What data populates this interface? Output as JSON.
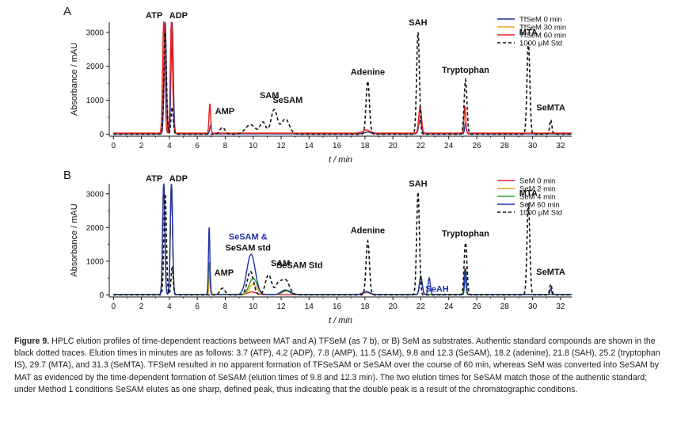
{
  "caption": {
    "label": "Figure 9.",
    "text": "HPLC elution profiles of time-dependent reactions between MAT and A) TFSeM (as 7 b), or B) SeM as substrates. Authentic standard compounds are shown in the black dotted traces. Elution times in minutes are as follows: 3.7 (ATP), 4.2 (ADP), 7.8 (AMP), 11.5 (SAM), 9.8 and 12.3 (SeSAM), 18.2 (adenine), 21.8 (SAH), 25.2 (tryptophan IS), 29.7 (MTA), and 31.3 (SeMTA). TFSeM resulted in no apparent formation of TFSeSAM or SeSAM over the course of 60 min, whereas SeM was converted into SeSAM by MAT as evidenced by the time-dependent formation of SeSAM (elution times of 9.8 and 12.3 min). The two elution times for SeSAM match those of the authentic standard; under Method 1 conditions SeSAM elutes as one sharp, defined peak, thus indicating that the double peak is a result of the chromatographic conditions."
  },
  "chart_data": [
    {
      "panel": "A",
      "type": "line",
      "xlabel": "t / min",
      "ylabel": "Absorbance / mAU",
      "xlim": [
        -0.3,
        32.8
      ],
      "ylim": [
        -60,
        3300
      ],
      "xticks": [
        0,
        2,
        4,
        6,
        8,
        10,
        12,
        14,
        16,
        18,
        20,
        22,
        24,
        26,
        28,
        30,
        32
      ],
      "yticks": [
        0,
        1000,
        2000,
        3000
      ],
      "legend_position": "top-right",
      "series": [
        {
          "name": "TfSeM    0 min",
          "color": "#1f2fa8",
          "dash": "",
          "baseline": 10,
          "peaks": [
            [
              3.7,
              3290,
              0.08
            ],
            [
              4.2,
              3290,
              0.08
            ],
            [
              6.95,
              250,
              0.06
            ],
            [
              18.2,
              50,
              0.25
            ],
            [
              21.95,
              420,
              0.1
            ],
            [
              25.2,
              320,
              0.06
            ]
          ]
        },
        {
          "name": "TfSeM  30 min",
          "color": "#f5a623",
          "dash": "",
          "baseline": 35,
          "peaks": [
            [
              3.6,
              3290,
              0.08
            ],
            [
              4.15,
              3290,
              0.08
            ],
            [
              6.9,
              750,
              0.06
            ],
            [
              18.1,
              80,
              0.25
            ],
            [
              21.95,
              650,
              0.1
            ],
            [
              25.15,
              700,
              0.06
            ]
          ]
        },
        {
          "name": "TfSeM  60 min",
          "color": "#e8202a",
          "dash": "",
          "baseline": 28,
          "peaks": [
            [
              3.6,
              3290,
              0.08
            ],
            [
              4.15,
              3290,
              0.08
            ],
            [
              6.9,
              870,
              0.06
            ],
            [
              18.1,
              100,
              0.25
            ],
            [
              21.95,
              790,
              0.1
            ],
            [
              25.15,
              800,
              0.06
            ]
          ]
        },
        {
          "name": "1000 µM Std",
          "color": "#111111",
          "dash": "4,3",
          "baseline": 0,
          "peaks": [
            [
              3.7,
              3000,
              0.09
            ],
            [
              4.2,
              800,
              0.08
            ],
            [
              7.8,
              200,
              0.18
            ],
            [
              9.8,
              280,
              0.35
            ],
            [
              10.7,
              350,
              0.2
            ],
            [
              11.5,
              720,
              0.22
            ],
            [
              12.3,
              450,
              0.28
            ],
            [
              18.2,
              1560,
              0.12
            ],
            [
              21.8,
              3000,
              0.1
            ],
            [
              25.2,
              1600,
              0.1
            ],
            [
              29.7,
              2700,
              0.1
            ],
            [
              31.3,
              420,
              0.08
            ]
          ]
        }
      ],
      "peak_labels": [
        {
          "text": "ATP",
          "x": 3.7
        },
        {
          "text": "ADP",
          "x": 4.2
        },
        {
          "text": "AMP",
          "x": 7.8
        },
        {
          "text": "SAM",
          "x": 11.5
        },
        {
          "text": "SeSAM",
          "x": 12.3
        },
        {
          "text": "Adenine",
          "x": 18.2
        },
        {
          "text": "SAH",
          "x": 21.8
        },
        {
          "text": "Tryptophan",
          "x": 25.2
        },
        {
          "text": "MTA",
          "x": 29.7
        },
        {
          "text": "SeMTA",
          "x": 31.3
        }
      ]
    },
    {
      "panel": "B",
      "type": "line",
      "xlabel": "t / min",
      "ylabel": "Absorbance / mAU",
      "xlim": [
        -0.3,
        32.8
      ],
      "ylim": [
        -60,
        3300
      ],
      "xticks": [
        0,
        2,
        4,
        6,
        8,
        10,
        12,
        14,
        16,
        18,
        20,
        22,
        24,
        26,
        28,
        30,
        32
      ],
      "yticks": [
        0,
        1000,
        2000,
        3000
      ],
      "legend_position": "top-right",
      "series": [
        {
          "name": "SeM    0 min",
          "color": "#e8202a",
          "dash": "",
          "baseline": 8,
          "peaks": [
            [
              3.6,
              3290,
              0.08
            ],
            [
              4.15,
              3290,
              0.08
            ],
            [
              6.9,
              600,
              0.06
            ],
            [
              9.9,
              80,
              0.3
            ],
            [
              18.1,
              60,
              0.25
            ],
            [
              22.0,
              500,
              0.1
            ],
            [
              25.15,
              760,
              0.06
            ]
          ]
        },
        {
          "name": "SeM    2 min",
          "color": "#f5a623",
          "dash": "",
          "baseline": 10,
          "peaks": [
            [
              3.6,
              3290,
              0.08
            ],
            [
              4.15,
              3290,
              0.08
            ],
            [
              6.9,
              700,
              0.06
            ],
            [
              10.0,
              300,
              0.28
            ],
            [
              12.4,
              100,
              0.3
            ],
            [
              18.1,
              70,
              0.25
            ],
            [
              22.0,
              500,
              0.1
            ],
            [
              25.15,
              740,
              0.06
            ]
          ]
        },
        {
          "name": "SeM    4 min",
          "color": "#22a02a",
          "dash": "",
          "baseline": 14,
          "peaks": [
            [
              3.6,
              3290,
              0.08
            ],
            [
              4.15,
              3290,
              0.08
            ],
            [
              6.85,
              950,
              0.06
            ],
            [
              10.0,
              480,
              0.28
            ],
            [
              12.4,
              120,
              0.3
            ],
            [
              18.1,
              80,
              0.25
            ],
            [
              22.0,
              560,
              0.1
            ],
            [
              25.15,
              720,
              0.06
            ]
          ]
        },
        {
          "name": "SeM  60 min",
          "color": "#1f2fa8",
          "dash": "",
          "baseline": 6,
          "peaks": [
            [
              3.6,
              3290,
              0.08
            ],
            [
              4.15,
              3290,
              0.08
            ],
            [
              6.85,
              2020,
              0.05
            ],
            [
              9.85,
              1200,
              0.3
            ],
            [
              12.3,
              140,
              0.3
            ],
            [
              18.1,
              90,
              0.25
            ],
            [
              22.0,
              520,
              0.1
            ],
            [
              22.6,
              500,
              0.08
            ],
            [
              25.2,
              780,
              0.06
            ],
            [
              31.3,
              180,
              0.06
            ]
          ]
        },
        {
          "name": "1000 µM Std",
          "color": "#111111",
          "dash": "4,3",
          "baseline": 0,
          "peaks": [
            [
              3.7,
              3000,
              0.09
            ],
            [
              4.2,
              800,
              0.08
            ],
            [
              7.8,
              200,
              0.18
            ],
            [
              9.8,
              700,
              0.22
            ],
            [
              11.1,
              600,
              0.22
            ],
            [
              11.8,
              300,
              0.2
            ],
            [
              12.3,
              450,
              0.28
            ],
            [
              18.2,
              1600,
              0.12
            ],
            [
              21.8,
              3050,
              0.1
            ],
            [
              25.2,
              1550,
              0.1
            ],
            [
              29.7,
              2720,
              0.1
            ],
            [
              31.3,
              320,
              0.08
            ]
          ]
        }
      ],
      "peak_labels": [
        {
          "text": "ATP",
          "x": 3.7
        },
        {
          "text": "ADP",
          "x": 4.2
        },
        {
          "text": "AMP",
          "x": 7.8
        },
        {
          "text": "SeSAM &",
          "x": 9.8
        },
        {
          "text": "SeSAM std",
          "x": 9.8
        },
        {
          "text": "SAM",
          "x": 11.5
        },
        {
          "text": "SeSAM Std",
          "x": 12.3
        },
        {
          "text": "Adenine",
          "x": 18.2
        },
        {
          "text": "SAH",
          "x": 21.8
        },
        {
          "text": "SeAH",
          "x": 22.6
        },
        {
          "text": "Tryptophan",
          "x": 25.2
        },
        {
          "text": "MTA",
          "x": 29.7
        },
        {
          "text": "SeMTA",
          "x": 31.3
        }
      ]
    }
  ]
}
